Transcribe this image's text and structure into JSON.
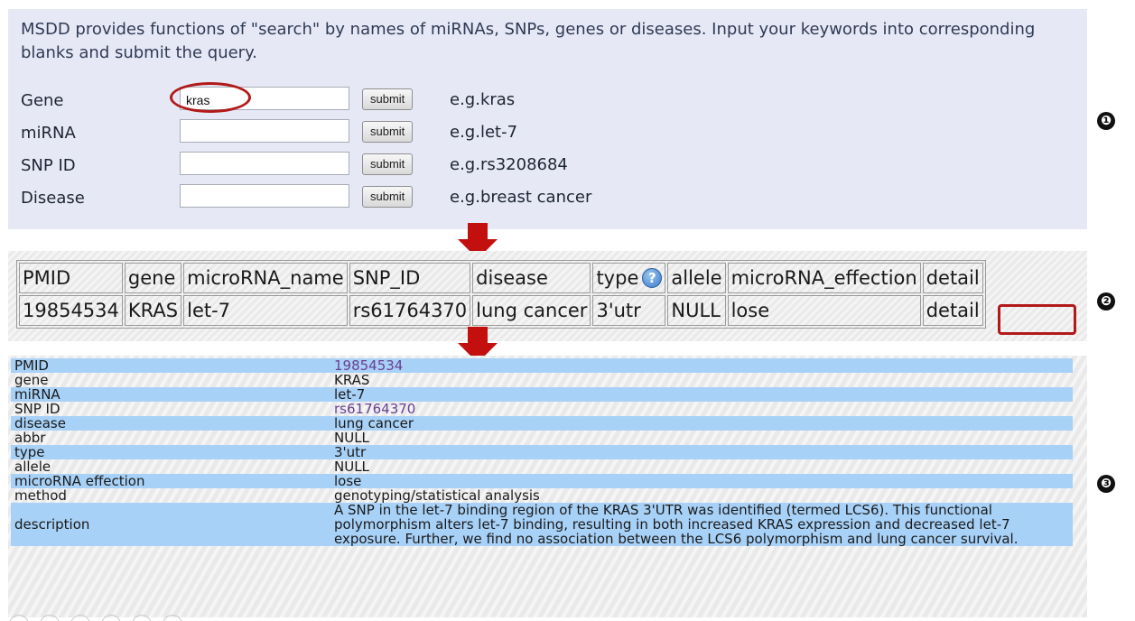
{
  "search": {
    "intro": "MSDD provides functions of \"search\" by names of miRNAs, SNPs, genes or diseases. Input your keywords into corresponding blanks and submit the query.",
    "rows": [
      {
        "label": "Gene",
        "value": "kras",
        "button": "submit",
        "example": "e.g.kras"
      },
      {
        "label": "miRNA",
        "value": "",
        "button": "submit",
        "example": "e.g.let-7"
      },
      {
        "label": "SNP ID",
        "value": "",
        "button": "submit",
        "example": "e.g.rs3208684"
      },
      {
        "label": "Disease",
        "value": "",
        "button": "submit",
        "example": "e.g.breast cancer"
      }
    ]
  },
  "markers": [
    "❶",
    "❷",
    "❸"
  ],
  "result_table": {
    "headers": [
      "PMID",
      "gene",
      "microRNA_name",
      "SNP_ID",
      "disease",
      "type",
      "allele",
      "microRNA_effection",
      "detail"
    ],
    "help_icon": "?",
    "row": {
      "pmid": "19854534",
      "gene": "KRAS",
      "microrna_name": "let-7",
      "snp_id": "rs61764370",
      "disease": "lung cancer",
      "type": "3'utr",
      "allele": "NULL",
      "effection": "lose",
      "detail": "detail"
    }
  },
  "detail_table": {
    "rows": [
      {
        "label": "PMID",
        "value": "19854534"
      },
      {
        "label": "gene",
        "value": "KRAS"
      },
      {
        "label": "miRNA",
        "value": "let-7"
      },
      {
        "label": "SNP ID",
        "value": "rs61764370"
      },
      {
        "label": "disease",
        "value": "lung cancer"
      },
      {
        "label": "abbr",
        "value": "NULL"
      },
      {
        "label": "type",
        "value": "3'utr"
      },
      {
        "label": "allele",
        "value": "NULL"
      },
      {
        "label": "microRNA effection",
        "value": "lose"
      },
      {
        "label": "method",
        "value": "genotyping/statistical analysis"
      },
      {
        "label": "description",
        "value": "A SNP in the let-7 binding region of the KRAS 3'UTR was identified (termed LCS6). This functional polymorphism alters let-7 binding, resulting in both increased KRAS expression and decreased let-7 exposure. Further, we find no association between the LCS6 polymorphism and lung cancer survival."
      }
    ]
  },
  "colors": {
    "panel_bg": "#e6e9f5",
    "row_highlight": "#a8d1f7",
    "link": "#6a3f92",
    "annotation_red": "#b21a1a"
  }
}
